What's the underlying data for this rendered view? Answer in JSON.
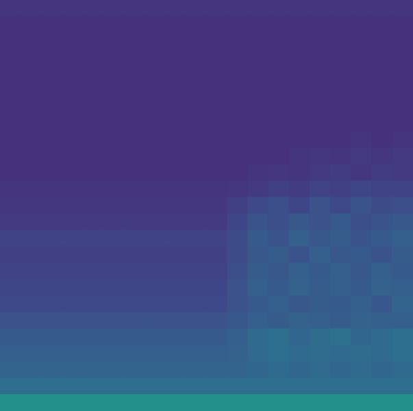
{
  "chart_data": {
    "type": "heatmap",
    "color": "viridis",
    "tick_labels": false,
    "zlim": [
      0,
      1
    ],
    "cells": [
      [
        0.15,
        0.15,
        0.15,
        0.15,
        0.15,
        0.15,
        0.15,
        0.15,
        0.15,
        0.15,
        0.15,
        0.15,
        0.15,
        0.15,
        0.15,
        0.15,
        0.15,
        0.15,
        0.15,
        0.15
      ],
      [
        0.14,
        0.14,
        0.14,
        0.14,
        0.14,
        0.14,
        0.14,
        0.14,
        0.14,
        0.14,
        0.14,
        0.14,
        0.14,
        0.14,
        0.14,
        0.14,
        0.14,
        0.14,
        0.14,
        0.14
      ],
      [
        0.14,
        0.14,
        0.14,
        0.14,
        0.14,
        0.14,
        0.14,
        0.14,
        0.14,
        0.14,
        0.14,
        0.14,
        0.14,
        0.14,
        0.14,
        0.14,
        0.14,
        0.14,
        0.14,
        0.14
      ],
      [
        0.14,
        0.14,
        0.14,
        0.14,
        0.14,
        0.14,
        0.14,
        0.14,
        0.14,
        0.14,
        0.14,
        0.14,
        0.14,
        0.14,
        0.14,
        0.14,
        0.14,
        0.14,
        0.14,
        0.14
      ],
      [
        0.14,
        0.14,
        0.14,
        0.14,
        0.14,
        0.14,
        0.14,
        0.14,
        0.14,
        0.14,
        0.14,
        0.14,
        0.14,
        0.14,
        0.14,
        0.14,
        0.14,
        0.14,
        0.14,
        0.14
      ],
      [
        0.14,
        0.14,
        0.14,
        0.14,
        0.14,
        0.14,
        0.14,
        0.14,
        0.14,
        0.14,
        0.14,
        0.14,
        0.14,
        0.14,
        0.14,
        0.14,
        0.14,
        0.14,
        0.14,
        0.14
      ],
      [
        0.14,
        0.14,
        0.14,
        0.14,
        0.14,
        0.14,
        0.14,
        0.14,
        0.14,
        0.14,
        0.14,
        0.14,
        0.14,
        0.14,
        0.14,
        0.14,
        0.14,
        0.14,
        0.14,
        0.14
      ],
      [
        0.14,
        0.14,
        0.14,
        0.14,
        0.14,
        0.14,
        0.14,
        0.14,
        0.14,
        0.14,
        0.14,
        0.14,
        0.14,
        0.14,
        0.14,
        0.14,
        0.14,
        0.14,
        0.14,
        0.14
      ],
      [
        0.14,
        0.14,
        0.14,
        0.14,
        0.14,
        0.14,
        0.14,
        0.14,
        0.14,
        0.14,
        0.14,
        0.14,
        0.14,
        0.14,
        0.14,
        0.14,
        0.14,
        0.15,
        0.14,
        0.15
      ],
      [
        0.14,
        0.14,
        0.14,
        0.14,
        0.14,
        0.14,
        0.14,
        0.14,
        0.14,
        0.14,
        0.14,
        0.14,
        0.14,
        0.14,
        0.15,
        0.16,
        0.15,
        0.17,
        0.16,
        0.17
      ],
      [
        0.14,
        0.14,
        0.14,
        0.14,
        0.14,
        0.14,
        0.14,
        0.14,
        0.14,
        0.14,
        0.14,
        0.14,
        0.15,
        0.16,
        0.15,
        0.17,
        0.18,
        0.16,
        0.18,
        0.17
      ],
      [
        0.15,
        0.15,
        0.15,
        0.15,
        0.15,
        0.15,
        0.15,
        0.15,
        0.15,
        0.15,
        0.15,
        0.16,
        0.17,
        0.19,
        0.18,
        0.2,
        0.19,
        0.21,
        0.2,
        0.2
      ],
      [
        0.16,
        0.16,
        0.16,
        0.16,
        0.16,
        0.16,
        0.16,
        0.16,
        0.16,
        0.16,
        0.16,
        0.19,
        0.22,
        0.24,
        0.21,
        0.25,
        0.22,
        0.26,
        0.23,
        0.24
      ],
      [
        0.17,
        0.17,
        0.17,
        0.17,
        0.17,
        0.17,
        0.17,
        0.17,
        0.17,
        0.17,
        0.17,
        0.21,
        0.26,
        0.24,
        0.27,
        0.25,
        0.28,
        0.24,
        0.26,
        0.27
      ],
      [
        0.2,
        0.2,
        0.2,
        0.2,
        0.2,
        0.2,
        0.2,
        0.2,
        0.2,
        0.2,
        0.2,
        0.23,
        0.28,
        0.26,
        0.3,
        0.27,
        0.29,
        0.26,
        0.28,
        0.3
      ],
      [
        0.19,
        0.19,
        0.19,
        0.19,
        0.19,
        0.19,
        0.19,
        0.19,
        0.19,
        0.19,
        0.19,
        0.23,
        0.27,
        0.29,
        0.26,
        0.3,
        0.27,
        0.28,
        0.26,
        0.29
      ],
      [
        0.2,
        0.2,
        0.2,
        0.2,
        0.2,
        0.2,
        0.2,
        0.2,
        0.2,
        0.2,
        0.2,
        0.24,
        0.29,
        0.27,
        0.3,
        0.28,
        0.3,
        0.27,
        0.3,
        0.28
      ],
      [
        0.21,
        0.21,
        0.21,
        0.21,
        0.21,
        0.21,
        0.21,
        0.21,
        0.21,
        0.21,
        0.21,
        0.25,
        0.3,
        0.28,
        0.31,
        0.29,
        0.3,
        0.28,
        0.31,
        0.3
      ],
      [
        0.22,
        0.22,
        0.22,
        0.22,
        0.22,
        0.22,
        0.22,
        0.22,
        0.22,
        0.22,
        0.22,
        0.25,
        0.28,
        0.3,
        0.27,
        0.29,
        0.28,
        0.3,
        0.27,
        0.32
      ],
      [
        0.25,
        0.25,
        0.25,
        0.25,
        0.25,
        0.25,
        0.25,
        0.25,
        0.25,
        0.25,
        0.25,
        0.27,
        0.3,
        0.29,
        0.31,
        0.3,
        0.29,
        0.31,
        0.3,
        0.3
      ],
      [
        0.28,
        0.28,
        0.28,
        0.28,
        0.28,
        0.28,
        0.28,
        0.28,
        0.28,
        0.28,
        0.28,
        0.3,
        0.34,
        0.36,
        0.33,
        0.35,
        0.37,
        0.33,
        0.34,
        0.36
      ],
      [
        0.3,
        0.3,
        0.3,
        0.3,
        0.3,
        0.3,
        0.3,
        0.3,
        0.3,
        0.3,
        0.3,
        0.31,
        0.34,
        0.36,
        0.34,
        0.35,
        0.34,
        0.35,
        0.34,
        0.36
      ],
      [
        0.32,
        0.32,
        0.32,
        0.32,
        0.32,
        0.32,
        0.32,
        0.32,
        0.32,
        0.32,
        0.32,
        0.32,
        0.33,
        0.34,
        0.33,
        0.34,
        0.33,
        0.34,
        0.33,
        0.34
      ],
      [
        0.36,
        0.36,
        0.36,
        0.36,
        0.36,
        0.36,
        0.36,
        0.36,
        0.36,
        0.36,
        0.36,
        0.36,
        0.36,
        0.36,
        0.36,
        0.36,
        0.36,
        0.36,
        0.36,
        0.36
      ],
      [
        0.5,
        0.5,
        0.5,
        0.5,
        0.5,
        0.5,
        0.5,
        0.5,
        0.5,
        0.5,
        0.5,
        0.5,
        0.5,
        0.5,
        0.5,
        0.5,
        0.5,
        0.5,
        0.5,
        0.5
      ]
    ]
  }
}
